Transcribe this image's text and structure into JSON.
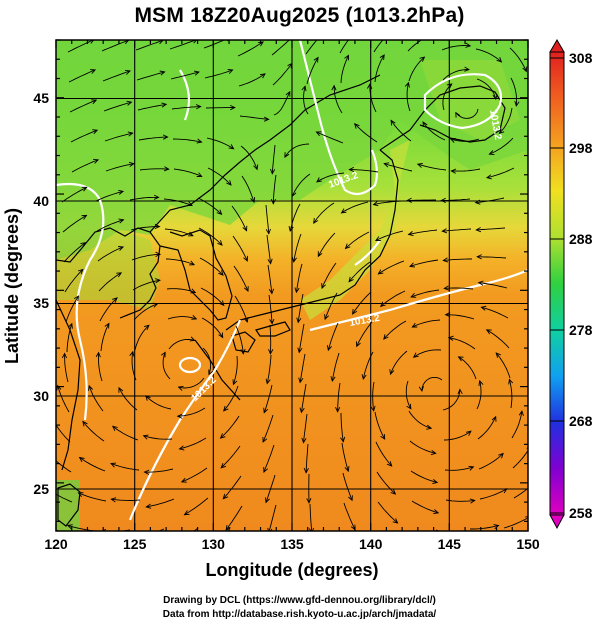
{
  "title": "MSM 18Z20Aug2025 (1013.2hPa)",
  "xaxis": {
    "label": "Longitude (degrees)",
    "ticks": [
      "120",
      "125",
      "130",
      "135",
      "140",
      "145",
      "150"
    ],
    "range": [
      120,
      150
    ]
  },
  "yaxis": {
    "label": "Latitude  (degrees)",
    "ticks": [
      "25",
      "30",
      "35",
      "40",
      "45"
    ],
    "range": [
      22.5,
      48
    ]
  },
  "colorbar": {
    "ticks": [
      "308",
      "298",
      "288",
      "278",
      "268",
      "258"
    ],
    "range": [
      258,
      308
    ]
  },
  "contours": {
    "label_a": "1013.2",
    "label_b": "1013.2",
    "label_c": "1013.2",
    "label_d": "1013.2"
  },
  "credits": {
    "line1": "Drawing by DCL (https://www.gfd-dennou.org/library/dcl/)",
    "line2": "Data from http://database.rish.kyoto-u.ac.jp/arch/jmadata/"
  },
  "colors": {
    "warm": "#f0a020",
    "mid": "#e8e040",
    "cool": "#50d040",
    "contour": "#ffffff"
  }
}
